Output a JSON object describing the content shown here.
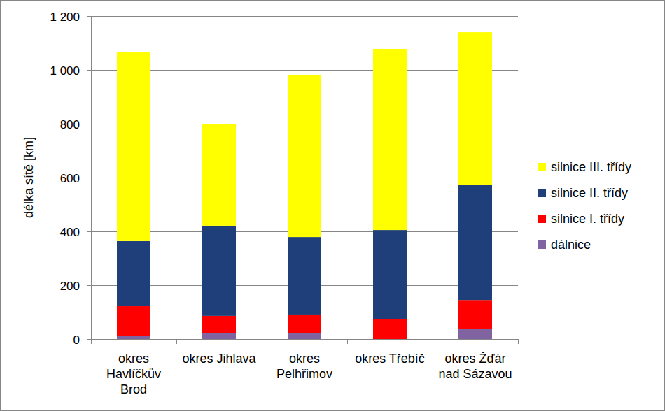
{
  "chart_data": {
    "type": "bar",
    "stacked": true,
    "y_label": "délka sítě [km]",
    "categories": [
      "okres Havlíčkův Brod",
      "okres Jihlava",
      "okres Pelhřimov",
      "okres Třebíč",
      "okres Žďár nad Sázavou"
    ],
    "series": [
      {
        "name": "dálnice",
        "color": "#8064a2",
        "values": [
          13,
          23,
          21,
          0,
          39
        ]
      },
      {
        "name": "silnice I. třídy",
        "color": "#ff0000",
        "values": [
          109,
          63,
          70,
          73,
          106
        ]
      },
      {
        "name": "silnice II. třídy",
        "color": "#1f3f7a",
        "values": [
          242,
          335,
          288,
          332,
          429
        ]
      },
      {
        "name": "silnice III. třídy",
        "color": "#ffff00",
        "values": [
          701,
          379,
          603,
          673,
          566
        ]
      }
    ],
    "ylim": [
      0,
      1200
    ],
    "yticks": [
      0,
      200,
      400,
      600,
      800,
      {
        "value": 1000,
        "label": "1 000"
      },
      {
        "value": 1200,
        "label": "1 200"
      }
    ],
    "grid": true,
    "legend": "right"
  }
}
